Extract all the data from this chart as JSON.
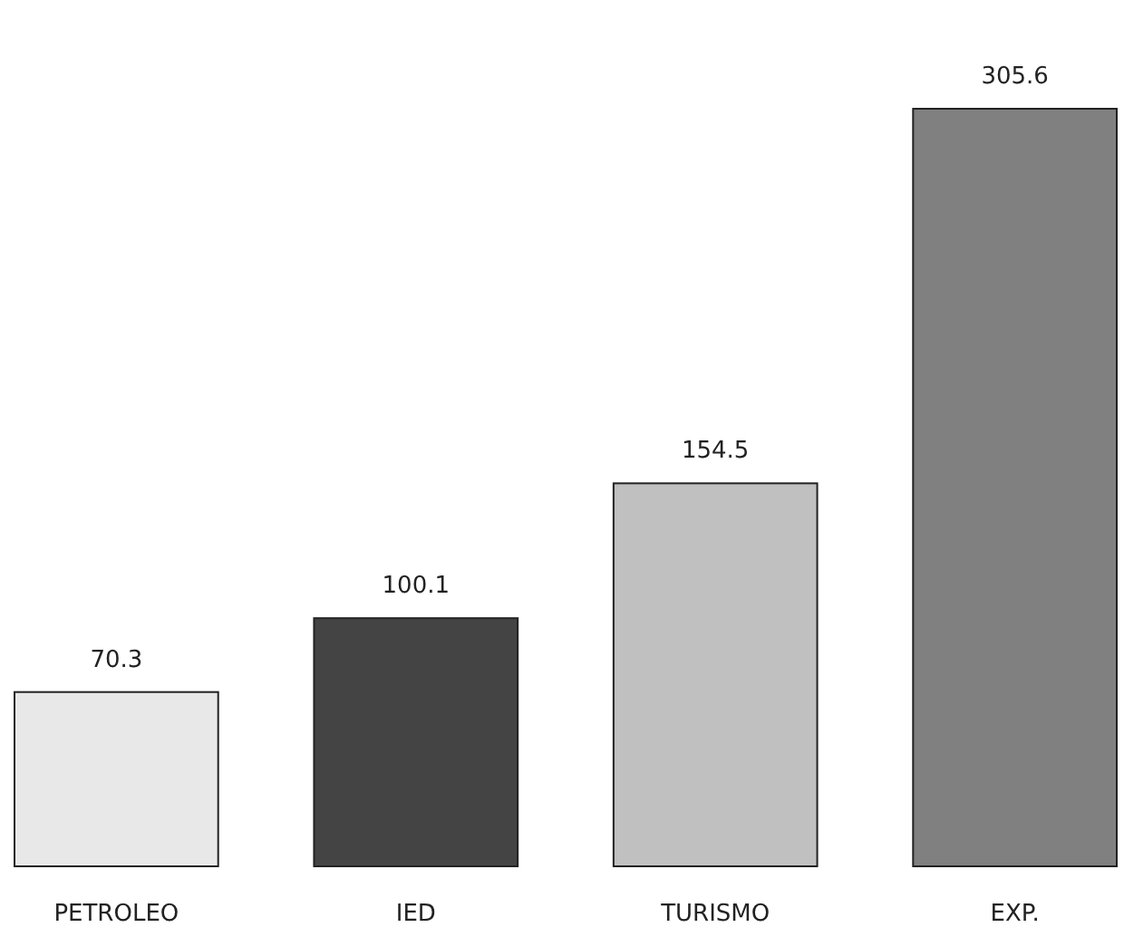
{
  "chart_data": {
    "type": "bar",
    "categories": [
      "PETROLEO",
      "IED",
      "TURISMO",
      "EXP."
    ],
    "values": [
      70.3,
      100.1,
      154.5,
      305.6
    ],
    "colors": [
      "#e8e8e8",
      "#444444",
      "#c0c0c0",
      "#808080"
    ],
    "data_labels": true
  }
}
